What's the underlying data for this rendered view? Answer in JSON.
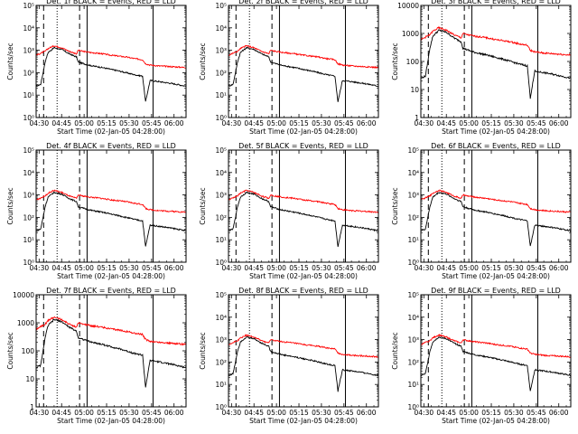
{
  "chart_data": {
    "type": "line",
    "layout": "3x3 grid",
    "xlabel": "Start Time (02-Jan-05 04:28:00)",
    "ylabel": "Counts/sec",
    "x_tick_labels": [
      "04:30",
      "04:45",
      "05:00",
      "05:15",
      "05:30",
      "05:45",
      "06:00"
    ],
    "x_range_minutes_after_0428": [
      0,
      100
    ],
    "y_scale": "log",
    "colors": {
      "events": "#000000",
      "lld": "#ff0000"
    },
    "events_series": "BLACK = Events",
    "lld_series": "RED = LLD",
    "vertical_markers": [
      {
        "style": "dashed",
        "time": "04:33"
      },
      {
        "style": "dotted",
        "time": "04:42"
      },
      {
        "style": "dashed",
        "time": "04:57"
      },
      {
        "style": "solid",
        "time": "05:02"
      },
      {
        "style": "solid",
        "time": "05:46"
      }
    ],
    "panels": [
      {
        "title": "Det. 1f  BLACK = Events,  RED = LLD",
        "y_range": [
          1,
          100000
        ],
        "y_tick_labels": [
          "10⁰",
          "10¹",
          "10²",
          "10³",
          "10⁴",
          "10⁵"
        ],
        "events": {
          "x": [
            0,
            3,
            4.5,
            6,
            8,
            12,
            17,
            22,
            27,
            28,
            31,
            36,
            44,
            50,
            55,
            60,
            66,
            71,
            73,
            76,
            82,
            88,
            94,
            100
          ],
          "y": [
            25,
            30,
            90,
            300,
            800,
            1300,
            1100,
            700,
            500,
            300,
            260,
            210,
            170,
            140,
            120,
            100,
            80,
            70,
            5,
            45,
            40,
            35,
            30,
            25
          ]
        },
        "lld": {
          "x": [
            0,
            6,
            8,
            12,
            17,
            22,
            27,
            28,
            31,
            36,
            44,
            50,
            55,
            60,
            66,
            71,
            73,
            76,
            82,
            88,
            94,
            100
          ],
          "y": [
            600,
            900,
            1200,
            1600,
            1300,
            900,
            700,
            1000,
            900,
            800,
            700,
            600,
            550,
            500,
            420,
            380,
            250,
            220,
            200,
            190,
            180,
            170
          ]
        }
      },
      {
        "title": "Det. 2f  BLACK = Events,  RED = LLD",
        "y_range": [
          1,
          100000
        ],
        "y_tick_labels": [
          "10⁰",
          "10¹",
          "10²",
          "10³",
          "10⁴",
          "10⁵"
        ],
        "events": {
          "x": [
            0,
            3,
            4.5,
            6,
            8,
            12,
            17,
            22,
            27,
            28,
            31,
            36,
            44,
            50,
            55,
            60,
            66,
            71,
            73,
            76,
            82,
            88,
            94,
            100
          ],
          "y": [
            25,
            30,
            90,
            300,
            800,
            1300,
            1100,
            700,
            500,
            300,
            260,
            210,
            170,
            140,
            120,
            100,
            80,
            70,
            5,
            45,
            40,
            35,
            30,
            25
          ]
        },
        "lld": {
          "x": [
            0,
            6,
            8,
            12,
            17,
            22,
            27,
            28,
            31,
            36,
            44,
            50,
            55,
            60,
            66,
            71,
            73,
            76,
            82,
            88,
            94,
            100
          ],
          "y": [
            600,
            900,
            1200,
            1600,
            1300,
            900,
            700,
            1000,
            900,
            800,
            700,
            600,
            550,
            500,
            420,
            380,
            250,
            220,
            200,
            190,
            180,
            170
          ]
        }
      },
      {
        "title": "Det. 3f  BLACK = Events,  RED = LLD",
        "y_range": [
          1,
          10000
        ],
        "y_tick_labels": [
          "1",
          "10",
          "100",
          "1000",
          "10000"
        ],
        "events": {
          "x": [
            0,
            3,
            4.5,
            6,
            8,
            12,
            17,
            22,
            27,
            28,
            31,
            36,
            44,
            50,
            55,
            60,
            66,
            71,
            73,
            76,
            82,
            88,
            94,
            100
          ],
          "y": [
            25,
            30,
            90,
            300,
            800,
            1300,
            1100,
            700,
            500,
            300,
            260,
            210,
            170,
            140,
            120,
            100,
            80,
            70,
            5,
            45,
            40,
            35,
            30,
            25
          ]
        },
        "lld": {
          "x": [
            0,
            6,
            8,
            12,
            17,
            22,
            27,
            28,
            31,
            36,
            44,
            50,
            55,
            60,
            66,
            71,
            73,
            76,
            82,
            88,
            94,
            100
          ],
          "y": [
            600,
            900,
            1200,
            1600,
            1300,
            900,
            700,
            1000,
            900,
            800,
            700,
            600,
            550,
            500,
            420,
            380,
            250,
            220,
            200,
            190,
            180,
            170
          ]
        }
      },
      {
        "title": "Det. 4f  BLACK = Events,  RED = LLD",
        "y_range": [
          1,
          100000
        ],
        "y_tick_labels": [
          "10⁰",
          "10¹",
          "10²",
          "10³",
          "10⁴",
          "10⁵"
        ],
        "events": {
          "x": [
            0,
            3,
            4.5,
            6,
            8,
            12,
            17,
            22,
            27,
            28,
            31,
            36,
            44,
            50,
            55,
            60,
            66,
            71,
            73,
            76,
            82,
            88,
            94,
            100
          ],
          "y": [
            25,
            30,
            90,
            300,
            800,
            1300,
            1100,
            700,
            500,
            300,
            260,
            210,
            170,
            140,
            120,
            100,
            80,
            70,
            5,
            45,
            40,
            35,
            30,
            25
          ]
        },
        "lld": {
          "x": [
            0,
            6,
            8,
            12,
            17,
            22,
            27,
            28,
            31,
            36,
            44,
            50,
            55,
            60,
            66,
            71,
            73,
            76,
            82,
            88,
            94,
            100
          ],
          "y": [
            600,
            900,
            1200,
            1600,
            1300,
            900,
            700,
            1000,
            900,
            800,
            700,
            600,
            550,
            500,
            420,
            380,
            250,
            220,
            200,
            190,
            180,
            170
          ]
        }
      },
      {
        "title": "Det. 5f  BLACK = Events,  RED = LLD",
        "y_range": [
          1,
          100000
        ],
        "y_tick_labels": [
          "10⁰",
          "10¹",
          "10²",
          "10³",
          "10⁴",
          "10⁵"
        ],
        "events": {
          "x": [
            0,
            3,
            4.5,
            6,
            8,
            12,
            17,
            22,
            27,
            28,
            31,
            36,
            44,
            50,
            55,
            60,
            66,
            71,
            73,
            76,
            82,
            88,
            94,
            100
          ],
          "y": [
            25,
            30,
            90,
            300,
            800,
            1300,
            1100,
            700,
            500,
            300,
            260,
            210,
            170,
            140,
            120,
            100,
            80,
            70,
            5,
            45,
            40,
            35,
            30,
            25
          ]
        },
        "lld": {
          "x": [
            0,
            6,
            8,
            12,
            17,
            22,
            27,
            28,
            31,
            36,
            44,
            50,
            55,
            60,
            66,
            71,
            73,
            76,
            82,
            88,
            94,
            100
          ],
          "y": [
            600,
            900,
            1200,
            1600,
            1300,
            900,
            700,
            1000,
            900,
            800,
            700,
            600,
            550,
            500,
            420,
            380,
            250,
            220,
            200,
            190,
            180,
            170
          ]
        }
      },
      {
        "title": "Det. 6f  BLACK = Events,  RED = LLD",
        "y_range": [
          1,
          100000
        ],
        "y_tick_labels": [
          "10⁰",
          "10¹",
          "10²",
          "10³",
          "10⁴",
          "10⁵"
        ],
        "events": {
          "x": [
            0,
            3,
            4.5,
            6,
            8,
            12,
            17,
            22,
            27,
            28,
            31,
            36,
            44,
            50,
            55,
            60,
            66,
            71,
            73,
            76,
            82,
            88,
            94,
            100
          ],
          "y": [
            25,
            30,
            90,
            300,
            800,
            1300,
            1100,
            700,
            500,
            300,
            260,
            210,
            170,
            140,
            120,
            100,
            80,
            70,
            5,
            45,
            40,
            35,
            30,
            25
          ]
        },
        "lld": {
          "x": [
            0,
            6,
            8,
            12,
            17,
            22,
            27,
            28,
            31,
            36,
            44,
            50,
            55,
            60,
            66,
            71,
            73,
            76,
            82,
            88,
            94,
            100
          ],
          "y": [
            600,
            900,
            1200,
            1600,
            1300,
            900,
            700,
            1000,
            900,
            800,
            700,
            600,
            550,
            500,
            420,
            380,
            250,
            220,
            200,
            190,
            180,
            170
          ]
        }
      },
      {
        "title": "Det. 7f  BLACK = Events,  RED = LLD",
        "y_range": [
          1,
          10000
        ],
        "y_tick_labels": [
          "1",
          "10",
          "100",
          "1000",
          "10000"
        ],
        "events": {
          "x": [
            0,
            3,
            4.5,
            6,
            8,
            12,
            17,
            22,
            27,
            28,
            31,
            36,
            44,
            50,
            55,
            60,
            66,
            71,
            73,
            76,
            82,
            88,
            94,
            100
          ],
          "y": [
            25,
            30,
            90,
            300,
            800,
            1300,
            1100,
            700,
            500,
            300,
            260,
            210,
            170,
            140,
            120,
            100,
            80,
            70,
            5,
            45,
            40,
            35,
            30,
            25
          ]
        },
        "lld": {
          "x": [
            0,
            6,
            8,
            12,
            17,
            22,
            27,
            28,
            31,
            36,
            44,
            50,
            55,
            60,
            66,
            71,
            73,
            76,
            82,
            88,
            94,
            100
          ],
          "y": [
            600,
            900,
            1200,
            1600,
            1300,
            900,
            700,
            1000,
            900,
            800,
            700,
            600,
            550,
            500,
            420,
            380,
            250,
            220,
            200,
            190,
            180,
            170
          ]
        }
      },
      {
        "title": "Det. 8f  BLACK = Events,  RED = LLD",
        "y_range": [
          1,
          100000
        ],
        "y_tick_labels": [
          "10⁰",
          "10¹",
          "10²",
          "10³",
          "10⁴",
          "10⁵"
        ],
        "events": {
          "x": [
            0,
            3,
            4.5,
            6,
            8,
            12,
            17,
            22,
            27,
            28,
            31,
            36,
            44,
            50,
            55,
            60,
            66,
            71,
            73,
            76,
            82,
            88,
            94,
            100
          ],
          "y": [
            25,
            30,
            90,
            300,
            800,
            1300,
            1100,
            700,
            500,
            300,
            260,
            210,
            170,
            140,
            120,
            100,
            80,
            70,
            5,
            45,
            40,
            35,
            30,
            25
          ]
        },
        "lld": {
          "x": [
            0,
            6,
            8,
            12,
            17,
            22,
            27,
            28,
            31,
            36,
            44,
            50,
            55,
            60,
            66,
            71,
            73,
            76,
            82,
            88,
            94,
            100
          ],
          "y": [
            600,
            900,
            1200,
            1600,
            1300,
            900,
            700,
            1000,
            900,
            800,
            700,
            600,
            550,
            500,
            420,
            380,
            250,
            220,
            200,
            190,
            180,
            170
          ]
        }
      },
      {
        "title": "Det. 9f  BLACK = Events,  RED = LLD",
        "y_range": [
          1,
          100000
        ],
        "y_tick_labels": [
          "10⁰",
          "10¹",
          "10²",
          "10³",
          "10⁴",
          "10⁵"
        ],
        "events": {
          "x": [
            0,
            3,
            4.5,
            6,
            8,
            12,
            17,
            22,
            27,
            28,
            31,
            36,
            44,
            50,
            55,
            60,
            66,
            71,
            73,
            76,
            82,
            88,
            94,
            100
          ],
          "y": [
            25,
            30,
            90,
            300,
            800,
            1300,
            1100,
            700,
            500,
            300,
            260,
            210,
            170,
            140,
            120,
            100,
            80,
            70,
            5,
            45,
            40,
            35,
            30,
            25
          ]
        },
        "lld": {
          "x": [
            0,
            6,
            8,
            12,
            17,
            22,
            27,
            28,
            31,
            36,
            44,
            50,
            55,
            60,
            66,
            71,
            73,
            76,
            82,
            88,
            94,
            100
          ],
          "y": [
            600,
            900,
            1200,
            1600,
            1300,
            900,
            700,
            1000,
            900,
            800,
            700,
            600,
            550,
            500,
            420,
            380,
            250,
            220,
            200,
            190,
            180,
            170
          ]
        }
      }
    ]
  }
}
